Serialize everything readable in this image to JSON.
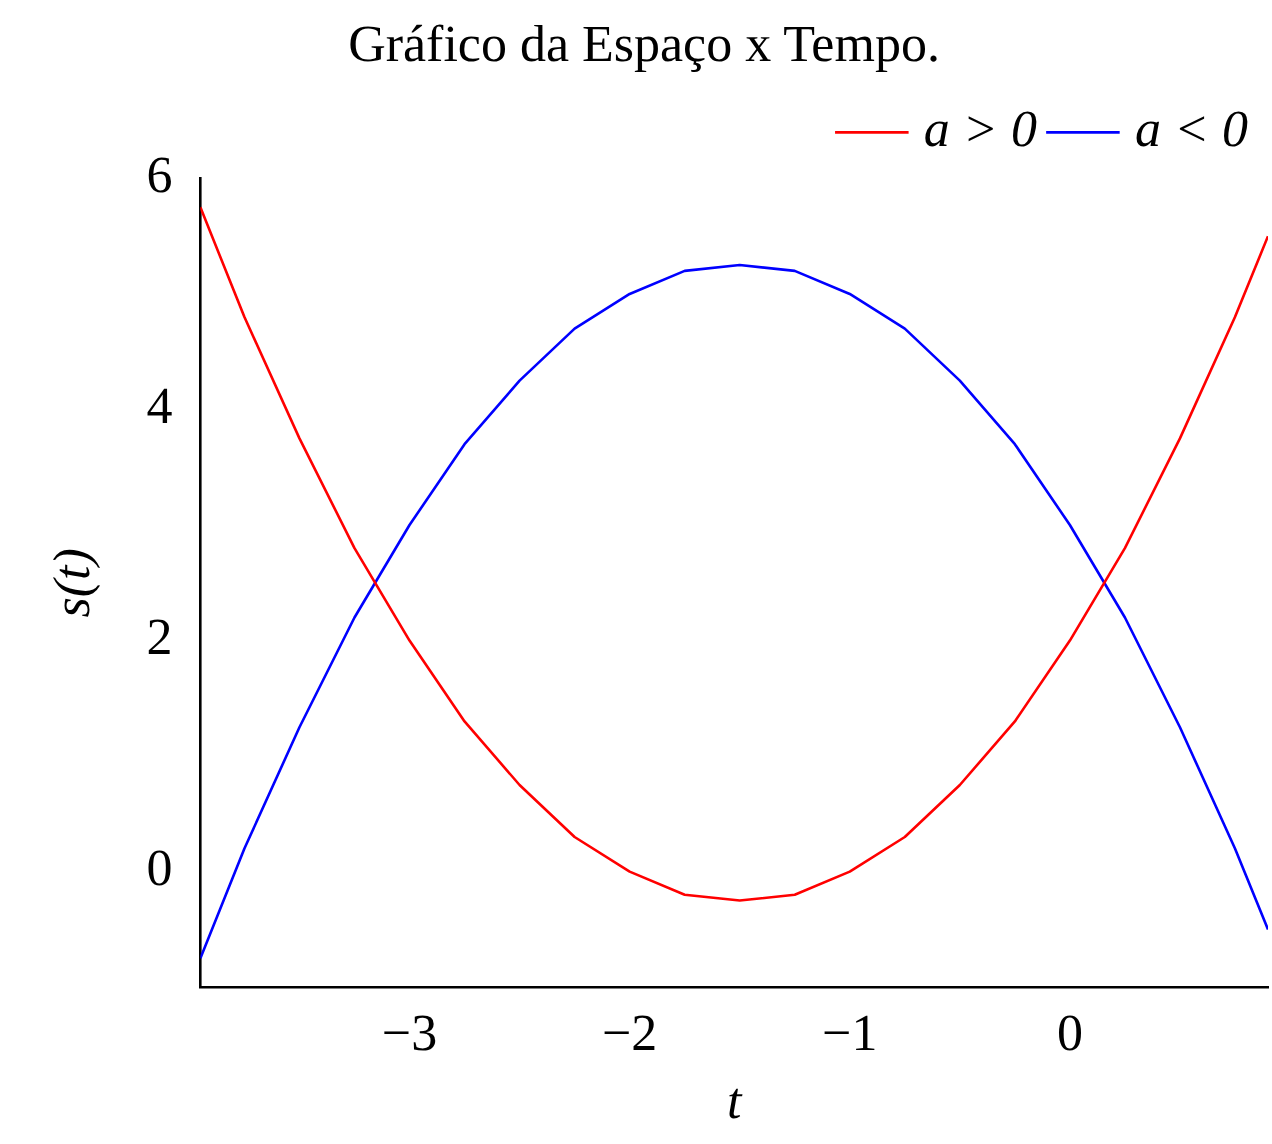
{
  "chart_data": {
    "type": "line",
    "title": "Gráfico da Espaço x Tempo.",
    "xlabel": "t",
    "ylabel": "s(t)",
    "x": [
      -3.95,
      -3.75,
      -3.5,
      -3.25,
      -3,
      -2.75,
      -2.5,
      -2.25,
      -2,
      -1.75,
      -1.5,
      -1.25,
      -1,
      -0.75,
      -0.5,
      -0.25,
      0,
      0.25,
      0.5,
      0.75,
      0.9
    ],
    "series": [
      {
        "name": "a > 0",
        "color": "#ff0000",
        "values": [
          5.75,
          4.8,
          3.75,
          2.8,
          2.0,
          1.3,
          0.75,
          0.3,
          0.0,
          -0.2,
          -0.25,
          -0.2,
          0.0,
          0.3,
          0.75,
          1.3,
          2.0,
          2.8,
          3.75,
          4.8,
          5.5
        ]
      },
      {
        "name": "a < 0",
        "color": "#0000ff",
        "values": [
          -0.75,
          0.2,
          1.25,
          2.2,
          3.0,
          3.7,
          4.25,
          4.7,
          5.0,
          5.2,
          5.25,
          5.2,
          5.0,
          4.7,
          4.25,
          3.7,
          3.0,
          2.2,
          1.25,
          0.2,
          -0.5
        ]
      }
    ],
    "xlim": [
      -3.95,
      0.9
    ],
    "ylim": [
      -1,
      6
    ],
    "xticks": [
      {
        "value": -3,
        "label": "−3"
      },
      {
        "value": -2,
        "label": "−2"
      },
      {
        "value": -1,
        "label": "−1"
      },
      0
    ],
    "yticks": [
      0,
      2,
      4,
      6
    ],
    "grid": false,
    "legend": "top right",
    "marker": "none",
    "line_style": "solid"
  }
}
